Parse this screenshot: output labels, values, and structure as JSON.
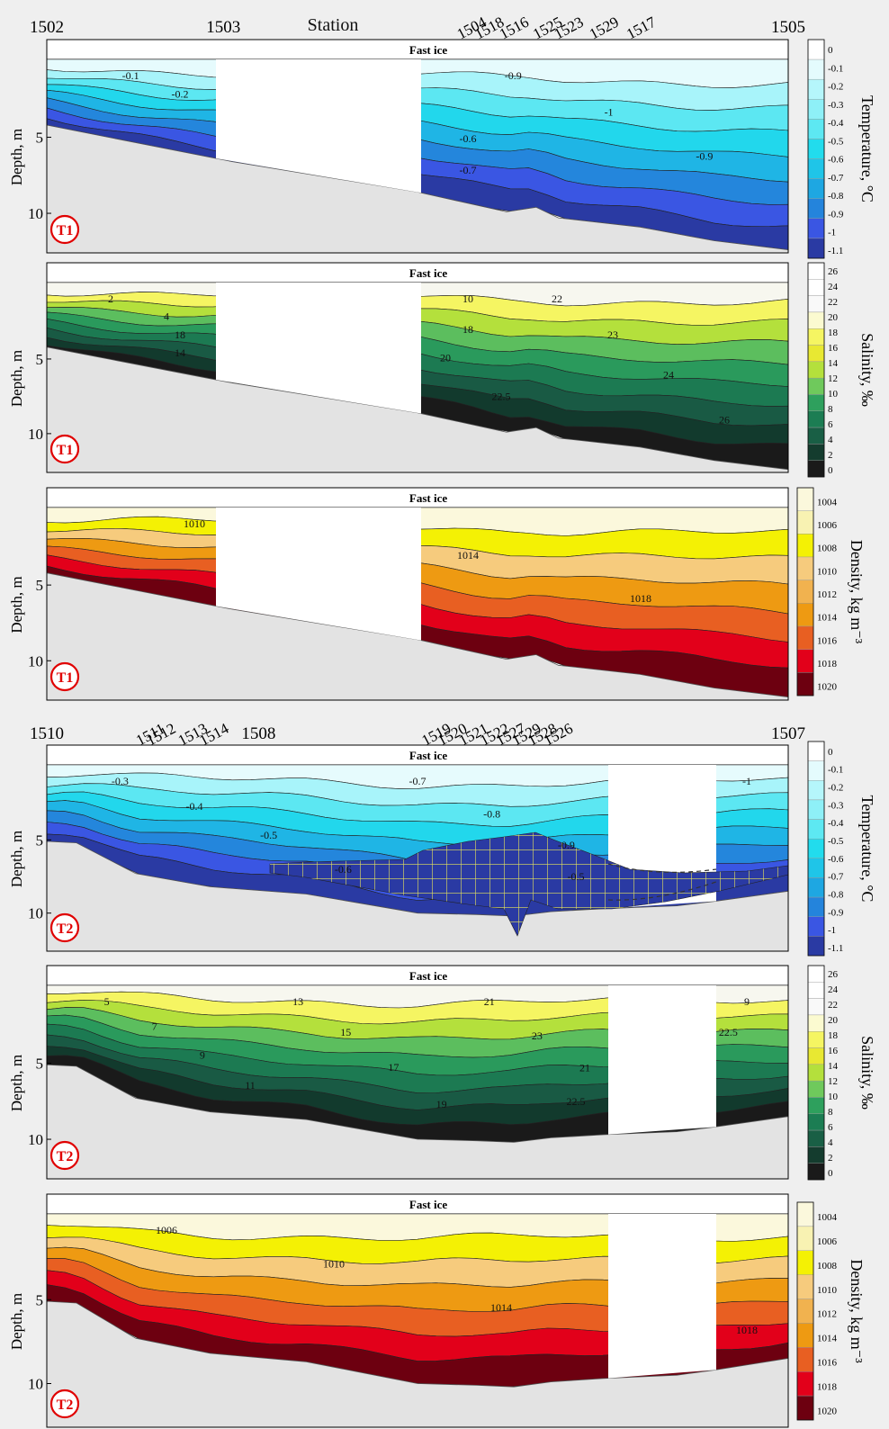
{
  "station_label": "Station",
  "ice_label": "Fast ice",
  "depth_label": "Depth, m",
  "colors": {
    "land": "#e3e3e3",
    "hatch": "#e7e55a"
  },
  "transects": [
    {
      "id": "T1",
      "stations": [
        {
          "name": "1502",
          "x": 0
        },
        {
          "name": "1503",
          "x": 1
        },
        {
          "name": "1504",
          "x": 2.42
        },
        {
          "name": "1518",
          "x": 2.52
        },
        {
          "name": "1516",
          "x": 2.66
        },
        {
          "name": "1525",
          "x": 2.85
        },
        {
          "name": "1523",
          "x": 2.97
        },
        {
          "name": "1529",
          "x": 3.17
        },
        {
          "name": "1517",
          "x": 3.38
        },
        {
          "name": "1505",
          "x": 4.2
        }
      ]
    },
    {
      "id": "T2",
      "stations": [
        {
          "name": "1510",
          "x": 0
        },
        {
          "name": "1511",
          "x": 1
        },
        {
          "name": "1512",
          "x": 1.1
        },
        {
          "name": "1513",
          "x": 1.4
        },
        {
          "name": "1514",
          "x": 1.6
        },
        {
          "name": "1508",
          "x": 2
        },
        {
          "name": "1519",
          "x": 3.7
        },
        {
          "name": "1520",
          "x": 3.85
        },
        {
          "name": "1521",
          "x": 4.05
        },
        {
          "name": "1522",
          "x": 4.25
        },
        {
          "name": "1527",
          "x": 4.4
        },
        {
          "name": "1529",
          "x": 4.55
        },
        {
          "name": "1528",
          "x": 4.7
        },
        {
          "name": "1526",
          "x": 4.85
        },
        {
          "name": "1507",
          "x": 7.0
        }
      ]
    }
  ],
  "chart_data": [
    {
      "type": "heatmap",
      "panel": "T1",
      "variable": "temperature",
      "xlabel": "Station",
      "ylabel": "Depth, m",
      "colorbar_label": "Temperature, °C",
      "y_ticks": [
        5,
        10
      ],
      "colorbar_ticks": [
        "0",
        "-0.1",
        "-0.2",
        "-0.3",
        "-0.4",
        "-0.5",
        "-0.6",
        "-0.7",
        "-0.8",
        "-0.9",
        "-1",
        "-1.1"
      ],
      "contour_labels": [
        "-0.1",
        "-0.2",
        "-0.6",
        "-0.7",
        "-0.9",
        "-1",
        "-0.9"
      ]
    },
    {
      "type": "heatmap",
      "panel": "T1",
      "variable": "salinity",
      "xlabel": "Station",
      "ylabel": "Depth, m",
      "colorbar_label": "Salinity, ‰",
      "y_ticks": [
        5,
        10
      ],
      "colorbar_ticks": [
        "26",
        "24",
        "22",
        "20",
        "18",
        "16",
        "14",
        "12",
        "10",
        "8",
        "6",
        "4",
        "2",
        "0"
      ],
      "contour_labels": [
        "2",
        "4",
        "18",
        "14",
        "10",
        "18",
        "20",
        "22.5",
        "22",
        "23",
        "24",
        "26"
      ]
    },
    {
      "type": "heatmap",
      "panel": "T1",
      "variable": "density",
      "xlabel": "Station",
      "ylabel": "Depth, m",
      "colorbar_label": "Density, kg m⁻³",
      "y_ticks": [
        5,
        10
      ],
      "colorbar_ticks": [
        "1004",
        "1006",
        "1008",
        "1010",
        "1012",
        "1014",
        "1016",
        "1018",
        "1020"
      ],
      "contour_labels": [
        "1010",
        "1014",
        "1018"
      ]
    },
    {
      "type": "heatmap",
      "panel": "T2",
      "variable": "temperature",
      "xlabel": "Station",
      "ylabel": "Depth, m",
      "colorbar_label": "Temperature, °C",
      "y_ticks": [
        5,
        10
      ],
      "colorbar_ticks": [
        "0",
        "-0.1",
        "-0.2",
        "-0.3",
        "-0.4",
        "-0.5",
        "-0.6",
        "-0.7",
        "-0.8",
        "-0.9",
        "-1",
        "-1.1"
      ],
      "contour_labels": [
        "-0.3",
        "-0.4",
        "-0.5",
        "-0.6",
        "-0.7",
        "-0.8",
        "-0.9",
        "-0.5",
        "-1"
      ]
    },
    {
      "type": "heatmap",
      "panel": "T2",
      "variable": "salinity",
      "xlabel": "Station",
      "ylabel": "Depth, m",
      "colorbar_label": "Salinity, ‰",
      "y_ticks": [
        5,
        10
      ],
      "colorbar_ticks": [
        "26",
        "24",
        "22",
        "20",
        "18",
        "16",
        "14",
        "12",
        "10",
        "8",
        "6",
        "4",
        "2",
        "0"
      ],
      "contour_labels": [
        "5",
        "7",
        "9",
        "11",
        "13",
        "15",
        "17",
        "19",
        "21",
        "23",
        "21",
        "22.5",
        "9",
        "22.5"
      ]
    },
    {
      "type": "heatmap",
      "panel": "T2",
      "variable": "density",
      "xlabel": "Station",
      "ylabel": "Depth, m",
      "colorbar_label": "Density, kg m⁻³",
      "y_ticks": [
        5,
        10
      ],
      "colorbar_ticks": [
        "1004",
        "1006",
        "1008",
        "1010",
        "1012",
        "1014",
        "1016",
        "1018",
        "1020"
      ],
      "contour_labels": [
        "1006",
        "1010",
        "1014",
        "1018"
      ]
    }
  ]
}
